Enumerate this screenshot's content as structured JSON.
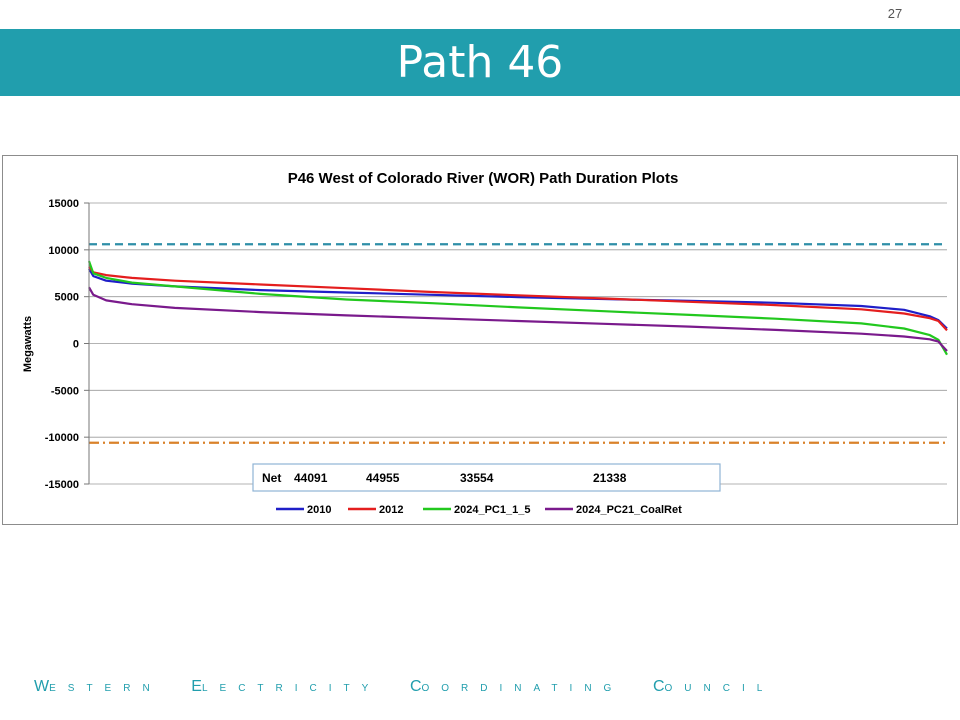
{
  "page": {
    "number": "27",
    "title": "Path 46",
    "footer_words": [
      {
        "first": "W",
        "rest": "ESTERN"
      },
      {
        "first": "E",
        "rest": "LECTRICITY"
      },
      {
        "first": "C",
        "rest": "OORDINATING"
      },
      {
        "first": "C",
        "rest": "OUNCIL"
      }
    ]
  },
  "colors": {
    "band": "#219ead",
    "2010": "#1f1fc8",
    "2012": "#e41e1e",
    "2024_PC1_1_5": "#22c81e",
    "2024_PC21_CoalRet": "#7a1a8c",
    "limit_pos": "#2f8fa8",
    "limit_neg": "#d9822b"
  },
  "chart_data": {
    "type": "line",
    "title": "P46 West of Colorado River (WOR) Path Duration Plots",
    "xlabel": "",
    "ylabel": "Megawatts",
    "ylim": [
      -15000,
      15000
    ],
    "yticks": [
      15000,
      10000,
      5000,
      0,
      -5000,
      -10000,
      -15000
    ],
    "ytick_labels": [
      "15000",
      "10000",
      "5000",
      "0",
      "-5000",
      "-10000",
      "-15000"
    ],
    "xlim": [
      0,
      1
    ],
    "grid": "horizontal",
    "legend_position": "bottom",
    "reference_lines": [
      {
        "value": 10600,
        "style": "dashed",
        "color_key": "limit_pos"
      },
      {
        "value": -10600,
        "style": "dash-dot",
        "color_key": "limit_neg"
      }
    ],
    "net_label": "Net",
    "net_values": [
      "44091",
      "44955",
      "33554",
      "21338"
    ],
    "series": [
      {
        "name": "2010",
        "color_key": "2010",
        "x": [
          0,
          0.005,
          0.02,
          0.05,
          0.1,
          0.2,
          0.3,
          0.4,
          0.5,
          0.6,
          0.7,
          0.8,
          0.9,
          0.95,
          0.98,
          0.99,
          1.0
        ],
        "y": [
          8000,
          7200,
          6700,
          6400,
          6100,
          5700,
          5450,
          5200,
          4950,
          4750,
          4550,
          4350,
          4000,
          3600,
          2900,
          2500,
          1600
        ]
      },
      {
        "name": "2012",
        "color_key": "2012",
        "x": [
          0,
          0.005,
          0.02,
          0.05,
          0.1,
          0.2,
          0.3,
          0.4,
          0.5,
          0.6,
          0.7,
          0.8,
          0.9,
          0.95,
          0.98,
          0.99,
          1.0
        ],
        "y": [
          8200,
          7600,
          7300,
          7000,
          6700,
          6300,
          5900,
          5500,
          5150,
          4800,
          4450,
          4100,
          3650,
          3200,
          2700,
          2400,
          1400
        ]
      },
      {
        "name": "2024_PC1_1_5",
        "color_key": "2024_PC1_1_5",
        "x": [
          0,
          0.005,
          0.02,
          0.05,
          0.1,
          0.2,
          0.3,
          0.4,
          0.5,
          0.6,
          0.7,
          0.8,
          0.9,
          0.95,
          0.98,
          0.99,
          1.0
        ],
        "y": [
          8800,
          7500,
          7000,
          6500,
          6100,
          5300,
          4700,
          4300,
          3850,
          3450,
          3050,
          2650,
          2150,
          1600,
          900,
          400,
          -1200
        ]
      },
      {
        "name": "2024_PC21_CoalRet",
        "color_key": "2024_PC21_CoalRet",
        "x": [
          0,
          0.005,
          0.02,
          0.05,
          0.1,
          0.2,
          0.3,
          0.4,
          0.5,
          0.6,
          0.7,
          0.8,
          0.9,
          0.95,
          0.98,
          0.99,
          1.0
        ],
        "y": [
          6000,
          5200,
          4600,
          4200,
          3800,
          3350,
          3000,
          2700,
          2400,
          2100,
          1800,
          1450,
          1050,
          750,
          450,
          200,
          -800
        ]
      }
    ]
  }
}
